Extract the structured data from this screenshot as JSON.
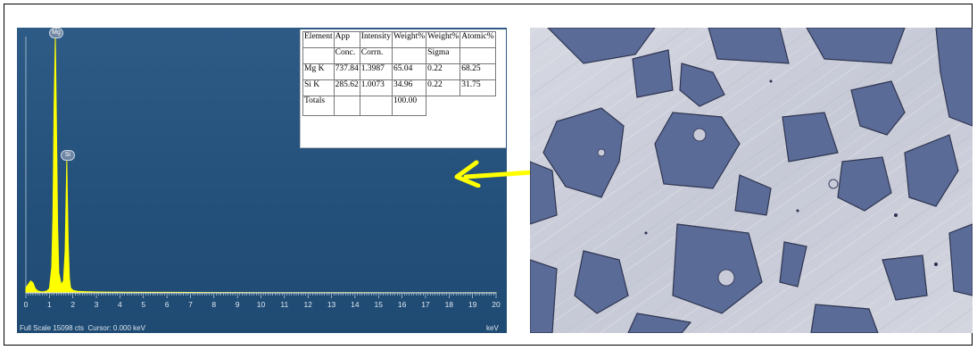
{
  "chart_data": {
    "type": "line",
    "x_unit": "keV",
    "xlim": [
      0,
      20
    ],
    "x_ticks": [
      "0",
      "1",
      "2",
      "3",
      "4",
      "5",
      "6",
      "7",
      "8",
      "9",
      "10",
      "11",
      "12",
      "13",
      "14",
      "15",
      "16",
      "17",
      "18",
      "19",
      "20"
    ],
    "series": [
      {
        "x": [
          0.0,
          0.1,
          0.2,
          0.3,
          0.4,
          0.5,
          0.6,
          0.7,
          0.8,
          0.9,
          1.0,
          1.1,
          1.15,
          1.2,
          1.253,
          1.3,
          1.35,
          1.4,
          1.5,
          1.6,
          1.67,
          1.74,
          1.8,
          1.85,
          1.9,
          2.0,
          2.2,
          2.5,
          3,
          4,
          5,
          6,
          7,
          8,
          9,
          10,
          12,
          14,
          16,
          18,
          20
        ],
        "y": [
          300,
          500,
          700,
          600,
          250,
          120,
          80,
          60,
          80,
          120,
          250,
          1500,
          4500,
          11000,
          15098,
          10000,
          4000,
          1200,
          500,
          700,
          2500,
          7800,
          3000,
          900,
          300,
          150,
          90,
          70,
          50,
          40,
          35,
          30,
          25,
          20,
          20,
          15,
          12,
          10,
          8,
          6,
          5
        ]
      }
    ],
    "peaks": [
      {
        "label": "Mg",
        "x": 1.253,
        "y": 15098
      },
      {
        "label": "Si",
        "x": 1.74,
        "y": 7800
      }
    ],
    "status": "Full Scale 15098 cts  Cursor: 0.000 keV",
    "unit_label": "keV",
    "table": {
      "header1": [
        "Element",
        "App",
        "Intensity",
        "Weight%",
        "Weight%",
        "Atomic%"
      ],
      "header2": [
        "",
        "Conc.",
        "Corrn.",
        "",
        "Sigma",
        ""
      ],
      "rows": [
        [
          "Mg K",
          "737.84",
          "1.3987",
          "65.04",
          "0.22",
          "68.25"
        ],
        [
          "Si K",
          "285.62",
          "1.0073",
          "34.96",
          "0.22",
          "31.75"
        ]
      ],
      "totals": [
        "Totals",
        "",
        "",
        "100.00"
      ]
    }
  },
  "colors": {
    "spectrum_bg": "#23507a",
    "peak_fill": "#ffff00",
    "arrow": "#ffff00",
    "micro_light": "#c9ccd8",
    "micro_dark": "#5a6a95"
  }
}
